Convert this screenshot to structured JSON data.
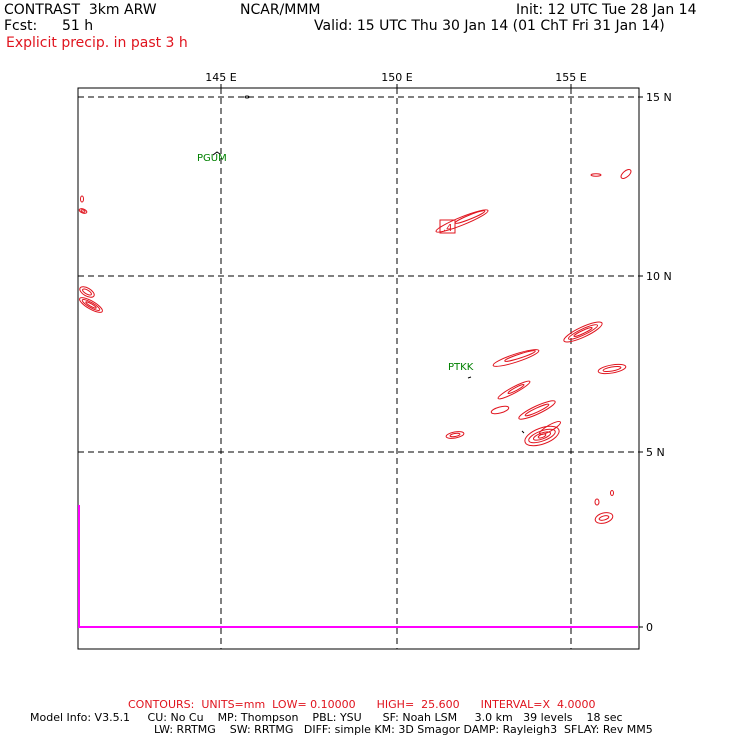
{
  "header": {
    "model": "CONTRAST  3km ARW",
    "org": "NCAR/MMM",
    "init": "Init: 12 UTC Tue 28 Jan 14",
    "fcst_label": "Fcst:",
    "fcst_value": "51 h",
    "valid": "Valid: 15 UTC Thu 30 Jan 14 (01 ChT Fri 31 Jan 14)",
    "field": "Explicit precip. in past 3 h"
  },
  "map": {
    "lon_labels": [
      "145 E",
      "150 E",
      "155 E"
    ],
    "lat_labels": [
      "15 N",
      "10 N",
      "5 N",
      "0"
    ],
    "stations": [
      "PGUM",
      "PTKK"
    ],
    "max_label": ".4",
    "colors": {
      "contour": "#e0141e",
      "station": "#008000",
      "boundary": "#ff00ff",
      "grid": "#000000"
    }
  },
  "footer": {
    "contours_line": "CONTOURS:  UNITS=mm  LOW= 0.10000      HIGH=  25.600      INTERVAL=X  4.0000",
    "model_info_line1": "Model Info: V3.5.1     CU: No Cu    MP: Thompson    PBL: YSU      SF: Noah LSM     3.0 km   39 levels    18 sec",
    "model_info_line2": "LW: RRTMG    SW: RRTMG   DIFF: simple KM: 3D Smagor DAMP: Rayleigh3  SFLAY: Rev MM5"
  }
}
